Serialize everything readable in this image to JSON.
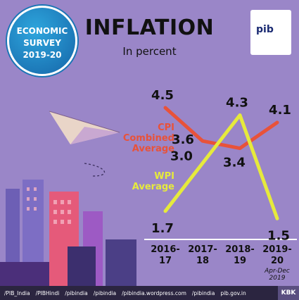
{
  "badge": {
    "line1": "ECONOMIC",
    "line2": "SURVEY",
    "line3": "2019-20"
  },
  "logo": {
    "text": "pib"
  },
  "footer": {
    "items": [
      "/PIB_India",
      "/PIBHindi",
      "/pibindia",
      "/pibindia",
      "/pibindia.wordpress.com",
      "/pibindia",
      "pib.gov.in"
    ],
    "tag": "KBK"
  },
  "chart_data": {
    "type": "line",
    "title": "INFLATION",
    "subtitle": "In percent",
    "categories": [
      "2016-\n17",
      "2017-\n18",
      "2018-\n19",
      "2019-\n20"
    ],
    "category_labels": [
      [
        "2016-",
        "17"
      ],
      [
        "2017-",
        "18"
      ],
      [
        "2018-",
        "19"
      ],
      [
        "2019-",
        "20"
      ]
    ],
    "category_note": "Apr-Dec\n2019",
    "category_note_lines": [
      "Apr-Dec",
      "2019"
    ],
    "series": [
      {
        "name": "CPI Combined Average",
        "name_lines": [
          "CPI",
          "Combined",
          "Average"
        ],
        "values": [
          4.5,
          3.6,
          3.4,
          4.1
        ],
        "labels": [
          "4.5",
          "3.6",
          "3.4",
          "4.1"
        ],
        "color": "#e8523a"
      },
      {
        "name": "WPI Average",
        "name_lines": [
          "WPI",
          "Average"
        ],
        "values": [
          1.7,
          3.0,
          4.3,
          1.5
        ],
        "labels": [
          "1.7",
          "3.0",
          "4.3",
          "1.5"
        ],
        "color": "#e6ea3c"
      }
    ],
    "ylim": [
      1.2,
      4.9
    ]
  }
}
